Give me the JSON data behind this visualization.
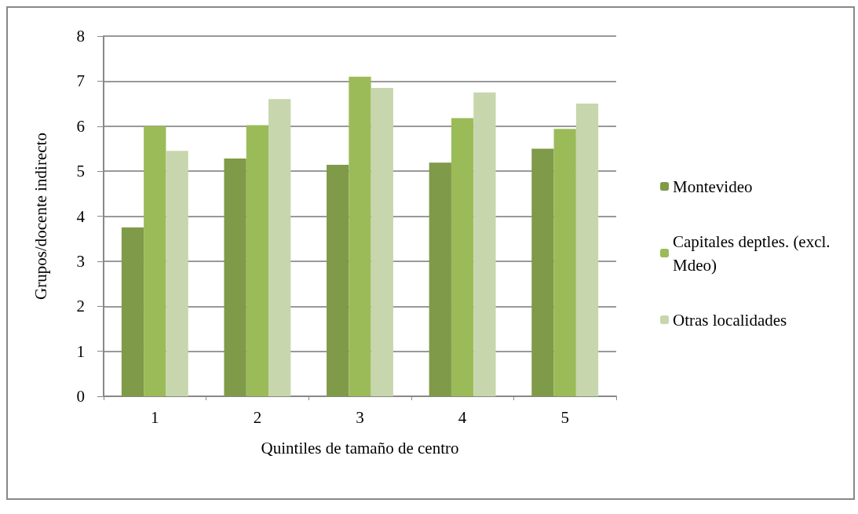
{
  "chart_data": {
    "type": "bar",
    "xlabel": "Quintiles de tamaño de centro",
    "ylabel": "Grupos/docente indirecto",
    "categories": [
      "1",
      "2",
      "3",
      "4",
      "5"
    ],
    "series": [
      {
        "name": "Montevideo",
        "color": "#7f9a48",
        "values": [
          3.75,
          5.28,
          5.14,
          5.19,
          5.5
        ]
      },
      {
        "name": "Capitales deptles. (excl. Mdeo)",
        "color": "#9bbb59",
        "values": [
          6.0,
          6.02,
          7.1,
          6.18,
          5.94
        ]
      },
      {
        "name": "Otras localidades",
        "color": "#c7d6ad",
        "values": [
          5.45,
          6.6,
          6.85,
          6.75,
          6.5
        ]
      }
    ],
    "ylim": [
      0,
      8
    ],
    "yticks": [
      0,
      1,
      2,
      3,
      4,
      5,
      6,
      7,
      8
    ],
    "grid": "y",
    "legend": "right"
  }
}
